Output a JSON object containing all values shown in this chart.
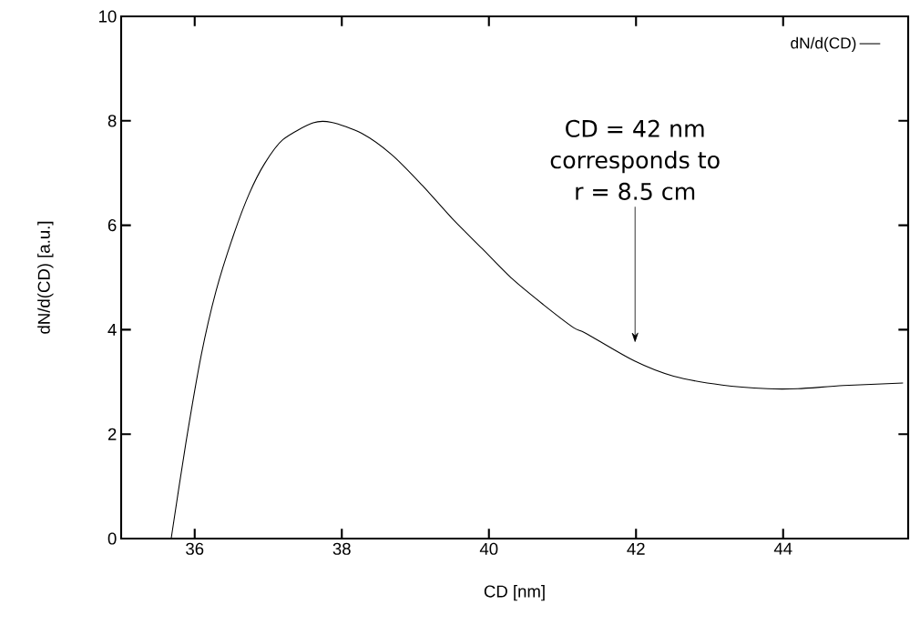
{
  "chart_data": {
    "type": "line",
    "xlabel": "CD [nm]",
    "ylabel": "dN/d(CD) [a.u.]",
    "x": [
      35.68,
      35.88,
      36.09,
      36.29,
      36.52,
      36.74,
      36.95,
      37.2,
      37.61,
      37.86,
      38.27,
      38.68,
      39.09,
      39.5,
      39.91,
      40.32,
      40.74,
      41.15,
      41.32,
      41.98,
      42.51,
      43.17,
      43.79,
      44.2,
      44.82,
      45.63
    ],
    "series": [
      {
        "name": "dN/d(CD)",
        "color": "#000000",
        "values": [
          0,
          1.83,
          3.52,
          4.74,
          5.78,
          6.6,
          7.18,
          7.64,
          7.96,
          7.97,
          7.76,
          7.35,
          6.77,
          6.13,
          5.55,
          4.97,
          4.48,
          4.04,
          3.93,
          3.4,
          3.11,
          2.94,
          2.87,
          2.87,
          2.93,
          2.98
        ]
      }
    ],
    "xlim": [
      35,
      45.7
    ],
    "ylim": [
      0,
      10
    ],
    "xticks": [
      36,
      38,
      40,
      42,
      44
    ],
    "yticks": [
      0,
      2,
      4,
      6,
      8,
      10
    ],
    "legend": "top right",
    "annotations": [
      "CD = 42 nm corresponds to r = 8.5 cm"
    ]
  }
}
